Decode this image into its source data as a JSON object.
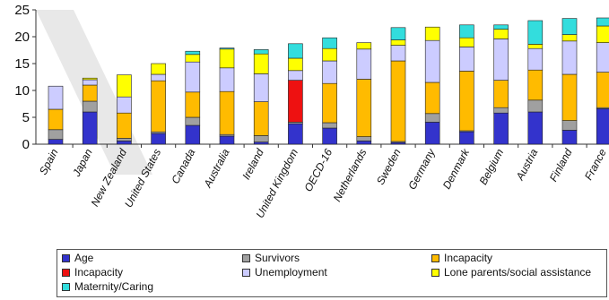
{
  "chart_data": {
    "type": "bar",
    "stacked": true,
    "ylim": [
      0,
      25
    ],
    "yticks": [
      0,
      5,
      10,
      15,
      20,
      25
    ],
    "grid": false,
    "legend_position": "bottom",
    "categories": [
      "Spain",
      "Japan",
      "New Zealand",
      "United States",
      "Canada",
      "Australia",
      "Ireland",
      "United Kingdom",
      "OECD-16",
      "Netherlands",
      "Sweden",
      "Germany",
      "Denmark",
      "Belgium",
      "Austria",
      "Finland",
      "France"
    ],
    "series": [
      {
        "name": "Age",
        "color": "#3333cc",
        "values": [
          0.9,
          6.0,
          0.6,
          2.0,
          3.5,
          1.5,
          0.4,
          3.8,
          3.0,
          0.6,
          0.3,
          4.1,
          2.3,
          5.8,
          6.0,
          2.6,
          6.6
        ]
      },
      {
        "name": "Survivors",
        "color": "#a0a0a0",
        "values": [
          1.8,
          2.0,
          0.5,
          0.3,
          1.5,
          0.3,
          1.2,
          0.3,
          1.0,
          0.8,
          0.2,
          1.6,
          0.2,
          1.0,
          2.2,
          1.8,
          0.2
        ]
      },
      {
        "name": "Incapacity",
        "color": "#ffbb00",
        "values": [
          3.8,
          3.0,
          4.7,
          9.5,
          4.7,
          8.0,
          6.3,
          0.0,
          7.3,
          10.7,
          15.0,
          5.8,
          11.1,
          5.1,
          5.6,
          8.6,
          6.6
        ]
      },
      {
        "name": "Incapacity",
        "color": "#ee1111",
        "values": [
          0.0,
          0.0,
          0.0,
          0.0,
          0.0,
          0.0,
          0.0,
          7.8,
          0.0,
          0.0,
          0.0,
          0.0,
          0.0,
          0.0,
          0.0,
          0.0,
          0.0
        ]
      },
      {
        "name": "Unemployment",
        "color": "#ccccff",
        "values": [
          4.3,
          1.0,
          3.0,
          1.2,
          5.6,
          4.4,
          5.2,
          1.8,
          4.2,
          5.6,
          2.9,
          7.8,
          4.5,
          7.7,
          4.0,
          6.2,
          5.5
        ]
      },
      {
        "name": "Lone parents/social assistance",
        "color": "#ffff00",
        "values": [
          0.0,
          0.3,
          4.1,
          2.0,
          1.4,
          3.5,
          3.7,
          2.3,
          2.3,
          1.2,
          1.0,
          2.5,
          1.7,
          1.8,
          0.8,
          1.2,
          3.1
        ]
      },
      {
        "name": "Maternity/Caring",
        "color": "#33dddd",
        "values": [
          0.0,
          0.0,
          0.0,
          0.0,
          0.6,
          0.2,
          0.8,
          2.7,
          2.0,
          0.0,
          2.3,
          0.0,
          2.4,
          0.8,
          4.4,
          3.0,
          1.5
        ]
      }
    ]
  }
}
